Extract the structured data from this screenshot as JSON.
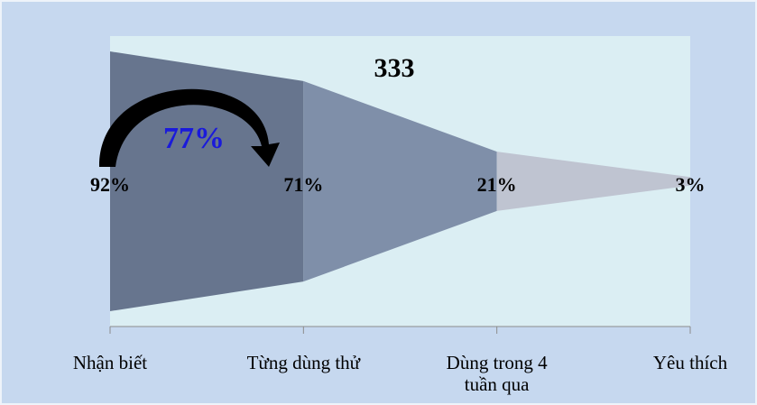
{
  "chart_data": {
    "type": "funnel",
    "categories": [
      "Nhận biết",
      "Từng dùng thử",
      "Dùng trong 4\ntuần qua",
      "Yêu thích"
    ],
    "values": [
      92,
      71,
      21,
      3
    ],
    "value_labels": [
      "92%",
      "71%",
      "21%",
      "3%"
    ],
    "colors": [
      "#67758e",
      "#7f8fa9",
      "#bfc4d1"
    ],
    "annotations": {
      "total": "333",
      "conversion": "77%"
    },
    "annotation_color": "#1a1adb"
  }
}
